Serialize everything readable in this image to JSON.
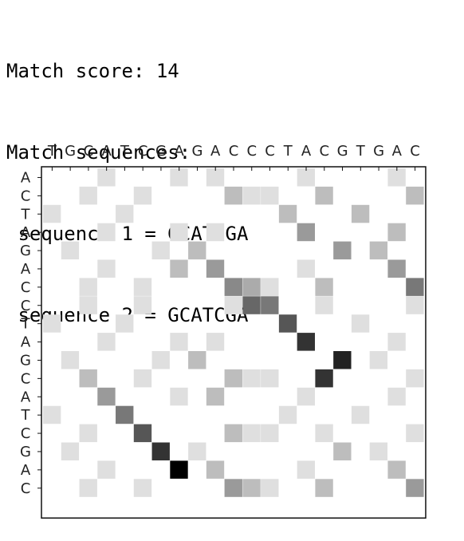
{
  "header": {
    "score_line": "Match score: 14",
    "sequences_label": "Match sequences:",
    "seq1_line": " sequence 1 = GCATCGA",
    "seq2_line": " sequence 2 = GCATCGA"
  },
  "chart_data": {
    "type": "heatmap",
    "title": "",
    "xlabel": "",
    "ylabel": "",
    "x_sequence": [
      "T",
      "G",
      "C",
      "A",
      "T",
      "C",
      "G",
      "A",
      "G",
      "A",
      "C",
      "C",
      "C",
      "T",
      "A",
      "C",
      "G",
      "T",
      "G",
      "A",
      "C"
    ],
    "y_sequence": [
      "A",
      "C",
      "T",
      "A",
      "G",
      "A",
      "C",
      "C",
      "T",
      "A",
      "G",
      "C",
      "A",
      "T",
      "C",
      "G",
      "A",
      "C"
    ],
    "value_range": [
      0,
      14
    ],
    "cells": [
      [
        0,
        3,
        1
      ],
      [
        0,
        7,
        1
      ],
      [
        0,
        9,
        1
      ],
      [
        0,
        14,
        1
      ],
      [
        0,
        19,
        1
      ],
      [
        1,
        2,
        1
      ],
      [
        1,
        5,
        1
      ],
      [
        1,
        10,
        3
      ],
      [
        1,
        11,
        1
      ],
      [
        1,
        12,
        1
      ],
      [
        1,
        15,
        3
      ],
      [
        1,
        20,
        3
      ],
      [
        2,
        0,
        1
      ],
      [
        2,
        4,
        1
      ],
      [
        2,
        13,
        3
      ],
      [
        2,
        17,
        3
      ],
      [
        3,
        3,
        1
      ],
      [
        3,
        7,
        1
      ],
      [
        3,
        9,
        1
      ],
      [
        3,
        14,
        5
      ],
      [
        3,
        19,
        3
      ],
      [
        4,
        1,
        1
      ],
      [
        4,
        6,
        1
      ],
      [
        4,
        8,
        3
      ],
      [
        4,
        16,
        5
      ],
      [
        4,
        18,
        3
      ],
      [
        5,
        3,
        1
      ],
      [
        5,
        7,
        3
      ],
      [
        5,
        9,
        5
      ],
      [
        5,
        14,
        1
      ],
      [
        5,
        19,
        5
      ],
      [
        6,
        2,
        1
      ],
      [
        6,
        5,
        1
      ],
      [
        6,
        10,
        6
      ],
      [
        6,
        11,
        4
      ],
      [
        6,
        12,
        1
      ],
      [
        6,
        15,
        3
      ],
      [
        6,
        20,
        7
      ],
      [
        7,
        2,
        1
      ],
      [
        7,
        5,
        1
      ],
      [
        7,
        10,
        1
      ],
      [
        7,
        11,
        8
      ],
      [
        7,
        12,
        7
      ],
      [
        7,
        15,
        1
      ],
      [
        7,
        20,
        1
      ],
      [
        8,
        0,
        1
      ],
      [
        8,
        4,
        1
      ],
      [
        8,
        13,
        9
      ],
      [
        8,
        17,
        1
      ],
      [
        9,
        3,
        1
      ],
      [
        9,
        7,
        1
      ],
      [
        9,
        9,
        1
      ],
      [
        9,
        14,
        11
      ],
      [
        9,
        19,
        1
      ],
      [
        10,
        1,
        1
      ],
      [
        10,
        6,
        1
      ],
      [
        10,
        8,
        3
      ],
      [
        10,
        16,
        12
      ],
      [
        10,
        18,
        1
      ],
      [
        11,
        2,
        3
      ],
      [
        11,
        5,
        1
      ],
      [
        11,
        10,
        3
      ],
      [
        11,
        11,
        1
      ],
      [
        11,
        12,
        1
      ],
      [
        11,
        15,
        11
      ],
      [
        11,
        20,
        1
      ],
      [
        12,
        3,
        5
      ],
      [
        12,
        7,
        1
      ],
      [
        12,
        9,
        3
      ],
      [
        12,
        14,
        1
      ],
      [
        12,
        19,
        1
      ],
      [
        13,
        0,
        1
      ],
      [
        13,
        4,
        7
      ],
      [
        13,
        13,
        1
      ],
      [
        13,
        17,
        1
      ],
      [
        14,
        2,
        1
      ],
      [
        14,
        5,
        9
      ],
      [
        14,
        10,
        3
      ],
      [
        14,
        11,
        1
      ],
      [
        14,
        12,
        1
      ],
      [
        14,
        15,
        1
      ],
      [
        14,
        20,
        1
      ],
      [
        15,
        1,
        1
      ],
      [
        15,
        6,
        11
      ],
      [
        15,
        8,
        1
      ],
      [
        15,
        16,
        3
      ],
      [
        15,
        18,
        1
      ],
      [
        16,
        3,
        1
      ],
      [
        16,
        7,
        14
      ],
      [
        16,
        9,
        3
      ],
      [
        16,
        14,
        1
      ],
      [
        16,
        19,
        3
      ],
      [
        17,
        2,
        1
      ],
      [
        17,
        5,
        1
      ],
      [
        17,
        10,
        5
      ],
      [
        17,
        11,
        3
      ],
      [
        17,
        12,
        1
      ],
      [
        17,
        15,
        3
      ],
      [
        17,
        20,
        5
      ]
    ]
  }
}
